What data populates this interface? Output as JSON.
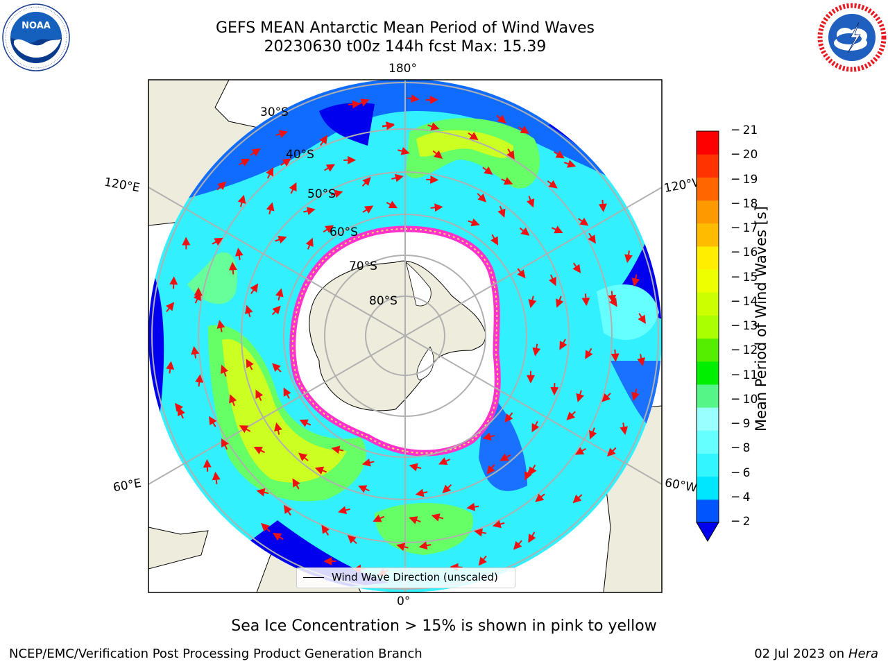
{
  "title": {
    "line1": "GEFS MEAN Antarctic Mean Period of Wind Waves",
    "line2": "20230630 t00z 144h fcst   Max: 15.39"
  },
  "logos": {
    "left": {
      "name": "NOAA",
      "ring_text": "NATIONAL OCEANIC AND ATMOSPHERIC ADMINISTRATION · U.S. DEPARTMENT OF COMMERCE"
    },
    "right": {
      "name": "NATIONAL WEATHER SERVICE"
    }
  },
  "map": {
    "projection": "south-polar-stereographic",
    "lat_labels": [
      "30°S",
      "40°S",
      "50°S",
      "60°S",
      "70°S",
      "80°S"
    ],
    "lon_labels": {
      "top": "180°",
      "bottom": "0°",
      "upper_left": "120°E",
      "lower_left": "60°E",
      "upper_right": "120°W",
      "lower_right": "60°W"
    },
    "legend": "Wind Wave Direction (unscaled)",
    "colors": {
      "land": "#eeecdc",
      "ice": "#ffffff",
      "ice_edge": "#ff33cc",
      "arrow": "#ee1111",
      "grid": "#b0b0b0"
    }
  },
  "colorbar": {
    "title": "Mean Period of Wind Waves [s]",
    "ticks": [
      "2",
      "4",
      "6",
      "8",
      "9",
      "10",
      "11",
      "12",
      "13",
      "14",
      "15",
      "16",
      "17",
      "18",
      "19",
      "20",
      "21"
    ],
    "colors": [
      "#0055ff",
      "#00e6ff",
      "#33f5ff",
      "#66ffff",
      "#99ffff",
      "#55f588",
      "#00ee00",
      "#55ee00",
      "#aaff00",
      "#ccff00",
      "#eeff00",
      "#ffee00",
      "#ffbb00",
      "#ff9900",
      "#ff6600",
      "#ff3300",
      "#ff0000"
    ],
    "under_color": "#0000ee"
  },
  "caption": "Sea Ice Concentration > 15% is shown in pink to yellow",
  "footer": {
    "left": "NCEP/EMC/Verification Post Processing Product Generation Branch",
    "date": "02 Jul 2023 on",
    "host": "Hera"
  }
}
